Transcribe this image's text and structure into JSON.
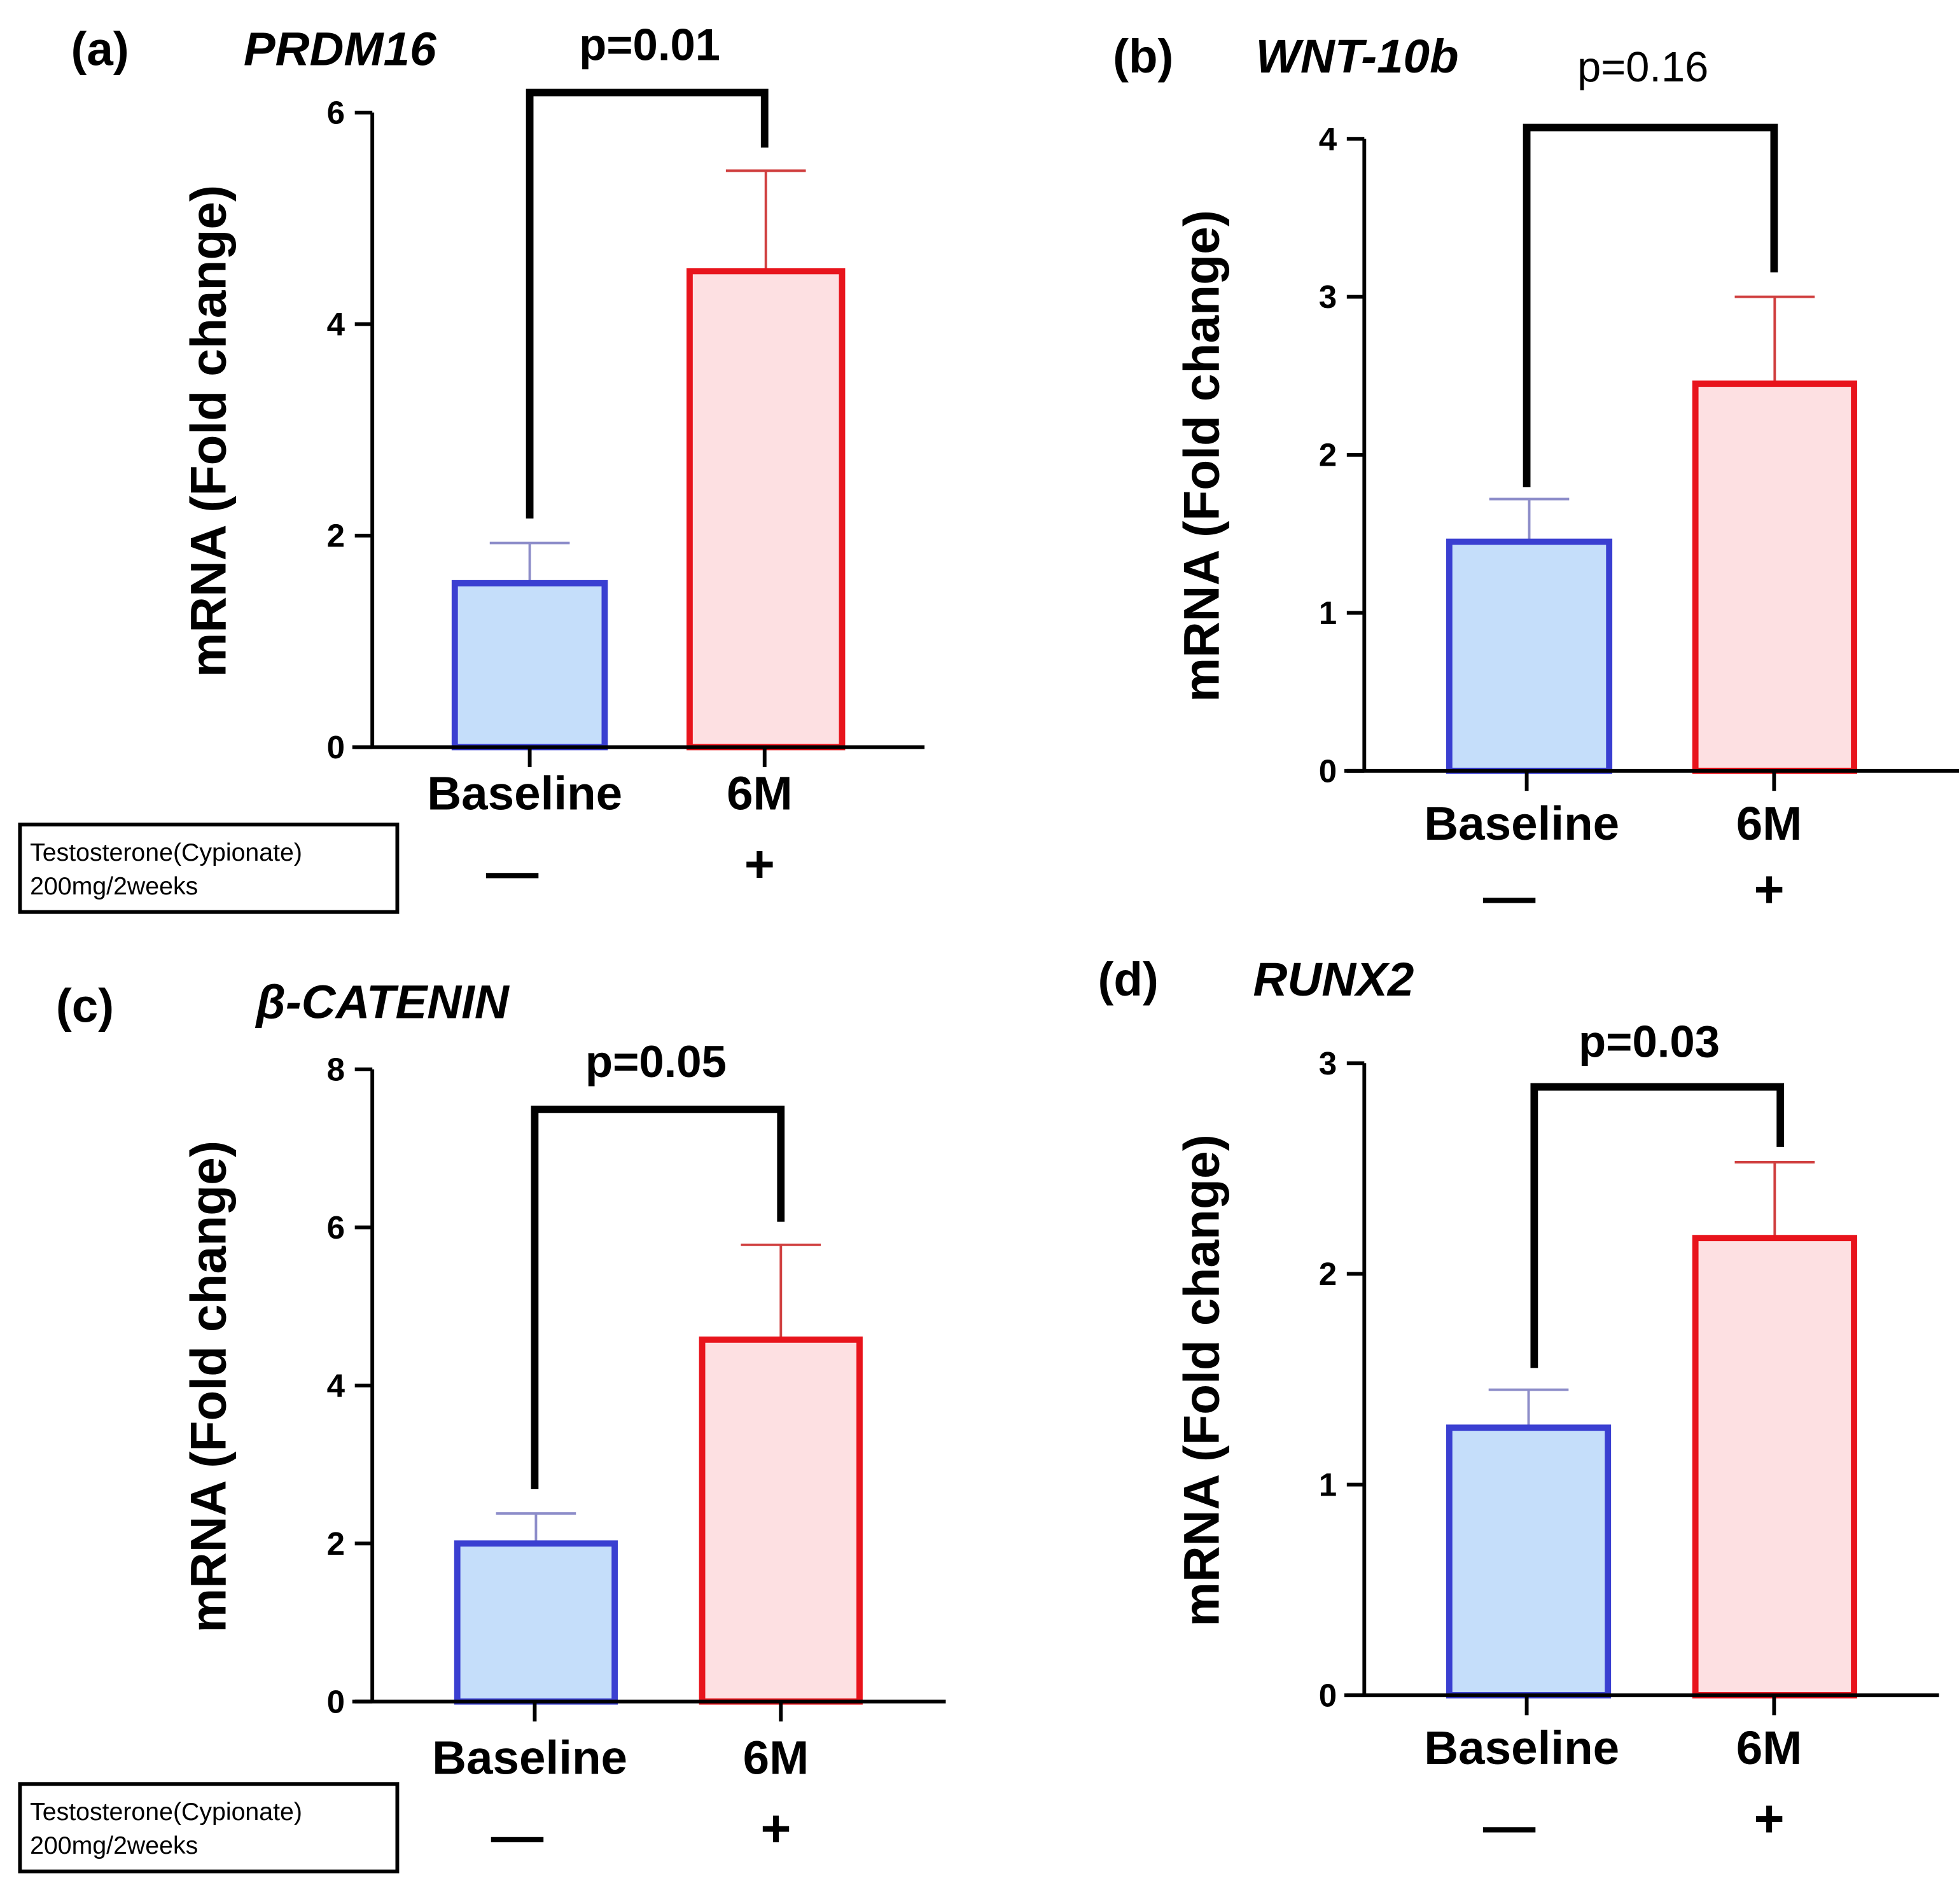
{
  "colors": {
    "baseline_fill": "#c5defa",
    "baseline_stroke": "#3a3fd1",
    "baseline_err": "#8d8dc9",
    "treated_fill": "#fde0e2",
    "treated_stroke": "#e8141c",
    "treated_err": "#d04040",
    "bracket": "#000000"
  },
  "treatment_label": {
    "line1": "Testosterone(Cypionate)",
    "line2": "200mg/2weeks"
  },
  "chart_data": [
    {
      "type": "bar",
      "panel": "(a)",
      "gene": "PRDM16",
      "p_value": "p=0.01",
      "p_bold": true,
      "ylabel": "mRNA (Fold change)",
      "ylim": [
        0,
        6
      ],
      "yticks": [
        0,
        2,
        4,
        6
      ],
      "categories": [
        "Baseline",
        "6M"
      ],
      "treatment_signs": [
        "—",
        "+"
      ],
      "values": [
        1.55,
        4.5
      ],
      "error_upper": [
        1.93,
        5.45
      ],
      "show_treatment_box": true
    },
    {
      "type": "bar",
      "panel": "(b)",
      "gene": "WNT-10b",
      "p_value": "p=0.16",
      "p_bold": false,
      "ylabel": "mRNA (Fold change)",
      "ylim": [
        0,
        4
      ],
      "yticks": [
        0,
        1,
        2,
        3,
        4
      ],
      "categories": [
        "Baseline",
        "6M"
      ],
      "treatment_signs": [
        "—",
        "+"
      ],
      "values": [
        1.45,
        2.45
      ],
      "error_upper": [
        1.72,
        3.0
      ],
      "show_treatment_box": false
    },
    {
      "type": "bar",
      "panel": "(c)",
      "gene": "β-CATENIN",
      "p_value": "p=0.05",
      "p_bold": true,
      "ylabel": "mRNA (Fold change)",
      "ylim": [
        0,
        8
      ],
      "yticks": [
        0,
        2,
        4,
        6,
        8
      ],
      "categories": [
        "Baseline",
        "6M"
      ],
      "treatment_signs": [
        "—",
        "+"
      ],
      "values": [
        2.0,
        4.58
      ],
      "error_upper": [
        2.38,
        5.78
      ],
      "show_treatment_box": true
    },
    {
      "type": "bar",
      "panel": "(d)",
      "gene": "RUNX2",
      "p_value": "p=0.03",
      "p_bold": true,
      "ylabel": "mRNA (Fold change)",
      "ylim": [
        0,
        3
      ],
      "yticks": [
        0,
        1,
        2,
        3
      ],
      "categories": [
        "Baseline",
        "6M"
      ],
      "treatment_signs": [
        "—",
        "+"
      ],
      "values": [
        1.27,
        2.17
      ],
      "error_upper": [
        1.45,
        2.53
      ],
      "show_treatment_box": false
    }
  ]
}
